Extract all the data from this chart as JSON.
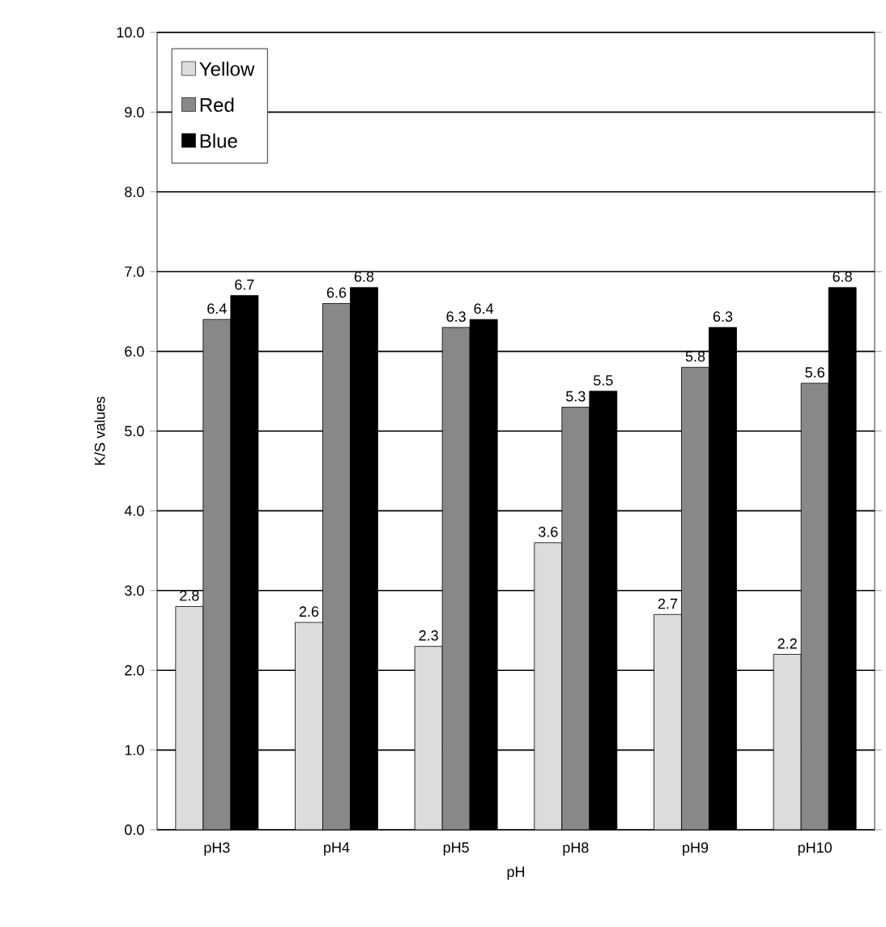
{
  "chart_data": {
    "type": "bar",
    "xlabel": "pH",
    "ylabel": "K/S values",
    "categories": [
      "pH3",
      "pH4",
      "pH5",
      "pH8",
      "pH9",
      "pH10"
    ],
    "series": [
      {
        "name": "Yellow",
        "color": "#dcdcdc",
        "values": [
          2.8,
          2.6,
          2.3,
          3.6,
          2.7,
          2.2
        ]
      },
      {
        "name": "Red",
        "color": "#888888",
        "values": [
          6.4,
          6.6,
          6.3,
          5.3,
          5.8,
          5.6
        ]
      },
      {
        "name": "Blue",
        "color": "#000000",
        "values": [
          6.7,
          6.8,
          6.4,
          5.5,
          6.3,
          6.8
        ]
      }
    ],
    "ylim": [
      0,
      10
    ],
    "yticks": [
      {
        "value": 0,
        "label": "0.0"
      },
      {
        "value": 1,
        "label": "1.0"
      },
      {
        "value": 2,
        "label": "2.0"
      },
      {
        "value": 3,
        "label": "3.0"
      },
      {
        "value": 4,
        "label": "4.0"
      },
      {
        "value": 5,
        "label": "5.0"
      },
      {
        "value": 6,
        "label": "6.0"
      },
      {
        "value": 7,
        "label": "7.0"
      },
      {
        "value": 8,
        "label": "8.0"
      },
      {
        "value": 9,
        "label": "9.0"
      },
      {
        "value": 10,
        "label": "10.0"
      }
    ],
    "grid": "y",
    "legend": "top left",
    "data_labels": true
  }
}
